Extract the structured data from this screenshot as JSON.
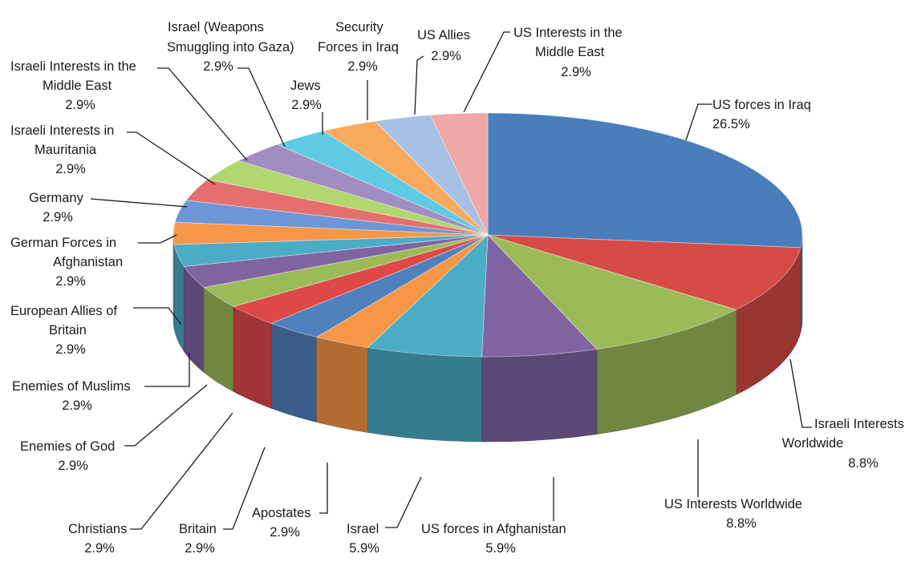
{
  "chart_data": {
    "type": "pie",
    "title": "",
    "slices": [
      {
        "label": "US forces in Iraq",
        "pct_label": "26.5%",
        "value": 26.5,
        "color": "#4a7ebb"
      },
      {
        "label": "Israeli Interests Worldwide",
        "pct_label": "8.8%",
        "value": 8.8,
        "color": "#d64b46"
      },
      {
        "label": "US Interests Worldwide",
        "pct_label": "8.8%",
        "value": 8.8,
        "color": "#9bbb59"
      },
      {
        "label": "US forces in Afghanistan",
        "pct_label": "5.9%",
        "value": 5.9,
        "color": "#8064a2"
      },
      {
        "label": "Israel",
        "pct_label": "5.9%",
        "value": 5.9,
        "color": "#4bacc6"
      },
      {
        "label": "Apostates",
        "pct_label": "2.9%",
        "value": 2.9,
        "color": "#f79646"
      },
      {
        "label": "Britain",
        "pct_label": "2.9%",
        "value": 2.9,
        "color": "#4f81bd"
      },
      {
        "label": "Christians",
        "pct_label": "2.9%",
        "value": 2.9,
        "color": "#e04848"
      },
      {
        "label": "Enemies of God",
        "pct_label": "2.9%",
        "value": 2.9,
        "color": "#9bbb59"
      },
      {
        "label": "Enemies of Muslims",
        "pct_label": "2.9%",
        "value": 2.9,
        "color": "#8064a2"
      },
      {
        "label": "European Allies of Britain",
        "pct_label": "2.9%",
        "value": 2.9,
        "color": "#4bacc6"
      },
      {
        "label": "German Forces in Afghanistan",
        "pct_label": "2.9%",
        "value": 2.9,
        "color": "#f79646"
      },
      {
        "label": "Germany",
        "pct_label": "2.9%",
        "value": 2.9,
        "color": "#6c96d8"
      },
      {
        "label": "Israeli Interests in Mauritania",
        "pct_label": "2.9%",
        "value": 2.9,
        "color": "#e56f6c"
      },
      {
        "label": "Israeli Interests in the Middle East",
        "pct_label": "2.9%",
        "value": 2.9,
        "color": "#b2d670"
      },
      {
        "label": "Israel (Weapons Smuggling into Gaza)",
        "pct_label": "2.9%",
        "value": 2.9,
        "color": "#a28dc2"
      },
      {
        "label": "Jews",
        "pct_label": "2.9%",
        "value": 2.9,
        "color": "#5fcbe2"
      },
      {
        "label": "Security Forces in Iraq",
        "pct_label": "2.9%",
        "value": 2.9,
        "color": "#f9a95c"
      },
      {
        "label": "US Allies",
        "pct_label": "2.9%",
        "value": 2.9,
        "color": "#a7c1e5"
      },
      {
        "label": "US Interests in the Middle East",
        "pct_label": "2.9%",
        "value": 2.9,
        "color": "#efa8a6"
      }
    ]
  }
}
